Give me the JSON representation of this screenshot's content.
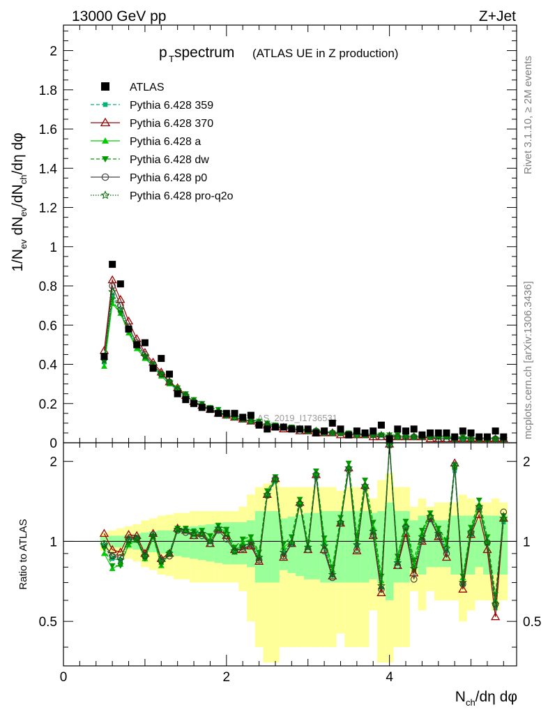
{
  "header": {
    "energy_label": "13000 GeV pp",
    "process_label": "Z+Jet",
    "title_main": "p",
    "title_sub": "T",
    "title_rest": " spectrum",
    "title_paren": "(ATLAS UE in Z production)",
    "rivet_label": "Rivet 3.1.10, ≥ 2M events",
    "source_label": "mcplots.cern.ch [arXiv:1306.3436]",
    "watermark": "ATLAS_2019_I1736531"
  },
  "axes": {
    "ylabel_top": "1/N_ev dN_ev/dN_ch/dη dφ",
    "ylabel_bottom": "Ratio to ATLAS",
    "xlabel": "N_ch/dη dφ",
    "top_ticks": [
      "0",
      "0.2",
      "0.4",
      "0.6",
      "0.8",
      "1",
      "1.2",
      "1.4",
      "1.6",
      "1.8",
      "2"
    ],
    "bottom_ticks": [
      "0.5",
      "1",
      "2"
    ],
    "x_ticks": [
      "0",
      "2",
      "4"
    ]
  },
  "chart_data": [
    {
      "type": "scatter",
      "panel": "main",
      "xlabel": "N_ch/dη dφ",
      "ylabel": "1/N_ev dN_ev/dN_ch/dη dφ",
      "xlim": [
        0,
        5.56
      ],
      "ylim": [
        0,
        2.13
      ],
      "legend_position": "top-left",
      "x": [
        0.5,
        0.6,
        0.7,
        0.8,
        0.9,
        1.0,
        1.1,
        1.2,
        1.3,
        1.4,
        1.5,
        1.6,
        1.7,
        1.8,
        1.9,
        2.0,
        2.1,
        2.2,
        2.3,
        2.4,
        2.5,
        2.6,
        2.7,
        2.8,
        2.9,
        3.0,
        3.1,
        3.2,
        3.3,
        3.4,
        3.5,
        3.6,
        3.7,
        3.8,
        3.9,
        4.0,
        4.1,
        4.2,
        4.3,
        4.4,
        4.5,
        4.6,
        4.7,
        4.8,
        4.9,
        5.0,
        5.1,
        5.2,
        5.3,
        5.4
      ],
      "series": [
        {
          "name": "ATLAS",
          "color": "#000000",
          "marker": "square",
          "values": [
            0.44,
            0.91,
            0.81,
            0.58,
            0.5,
            0.51,
            0.38,
            0.43,
            0.35,
            0.25,
            0.22,
            0.2,
            0.18,
            0.17,
            0.15,
            0.15,
            0.15,
            0.13,
            0.14,
            0.09,
            0.07,
            0.08,
            0.08,
            0.07,
            0.07,
            0.07,
            0.05,
            0.06,
            0.1,
            0.07,
            0.04,
            0.06,
            0.05,
            0.06,
            0.09,
            0.02,
            0.07,
            0.06,
            0.07,
            0.04,
            0.05,
            0.05,
            0.05,
            0.03,
            0.06,
            0.05,
            0.03,
            0.03,
            0.06,
            0.03
          ]
        },
        {
          "name": "Pythia 6.428 359",
          "color": "#00b377",
          "marker": "small-square",
          "dash": "dashed",
          "values": [
            0.41,
            0.75,
            0.67,
            0.57,
            0.49,
            0.44,
            0.39,
            0.34,
            0.3,
            0.27,
            0.24,
            0.21,
            0.19,
            0.17,
            0.16,
            0.14,
            0.13,
            0.12,
            0.11,
            0.1,
            0.09,
            0.08,
            0.08,
            0.07,
            0.07,
            0.06,
            0.06,
            0.05,
            0.05,
            0.05,
            0.04,
            0.04,
            0.04,
            0.04,
            0.04,
            0.03,
            0.03,
            0.03,
            0.03,
            0.03,
            0.03,
            0.03,
            0.03,
            0.02,
            0.02,
            0.02,
            0.02,
            0.02,
            0.02,
            0.02
          ]
        },
        {
          "name": "Pythia 6.428 370",
          "color": "#990000",
          "marker": "open-triangle",
          "dash": "solid",
          "values": [
            0.47,
            0.83,
            0.73,
            0.62,
            0.53,
            0.46,
            0.41,
            0.36,
            0.31,
            0.28,
            0.24,
            0.21,
            0.19,
            0.17,
            0.15,
            0.14,
            0.13,
            0.12,
            0.11,
            0.1,
            0.09,
            0.08,
            0.07,
            0.07,
            0.06,
            0.06,
            0.05,
            0.05,
            0.05,
            0.04,
            0.04,
            0.04,
            0.04,
            0.03,
            0.03,
            0.03,
            0.03,
            0.03,
            0.03,
            0.03,
            0.02,
            0.02,
            0.02,
            0.02,
            0.02,
            0.02,
            0.02,
            0.02,
            0.02,
            0.02
          ]
        },
        {
          "name": "Pythia 6.428 a",
          "color": "#00cc00",
          "marker": "triangle",
          "dash": "solid",
          "values": [
            0.39,
            0.71,
            0.66,
            0.56,
            0.48,
            0.43,
            0.39,
            0.34,
            0.3,
            0.27,
            0.24,
            0.21,
            0.19,
            0.17,
            0.16,
            0.14,
            0.13,
            0.12,
            0.11,
            0.1,
            0.09,
            0.09,
            0.08,
            0.07,
            0.07,
            0.06,
            0.06,
            0.06,
            0.05,
            0.05,
            0.05,
            0.04,
            0.04,
            0.04,
            0.04,
            0.04,
            0.03,
            0.03,
            0.03,
            0.03,
            0.03,
            0.03,
            0.03,
            0.03,
            0.03,
            0.02,
            0.02,
            0.02,
            0.02,
            0.02
          ]
        },
        {
          "name": "Pythia 6.428 dw",
          "color": "#009900",
          "marker": "down-triangle",
          "dash": "dashed",
          "values": [
            0.42,
            0.73,
            0.66,
            0.57,
            0.49,
            0.44,
            0.4,
            0.35,
            0.31,
            0.28,
            0.25,
            0.22,
            0.2,
            0.18,
            0.17,
            0.15,
            0.14,
            0.13,
            0.12,
            0.11,
            0.1,
            0.09,
            0.08,
            0.08,
            0.07,
            0.07,
            0.06,
            0.06,
            0.05,
            0.05,
            0.05,
            0.05,
            0.04,
            0.04,
            0.04,
            0.04,
            0.04,
            0.03,
            0.03,
            0.03,
            0.03,
            0.03,
            0.03,
            0.03,
            0.03,
            0.03,
            0.02,
            0.02,
            0.02,
            0.02
          ]
        },
        {
          "name": "Pythia 6.428 p0",
          "color": "#444444",
          "marker": "open-circle",
          "dash": "solid",
          "values": [
            0.43,
            0.8,
            0.7,
            0.59,
            0.51,
            0.45,
            0.4,
            0.35,
            0.31,
            0.27,
            0.24,
            0.21,
            0.19,
            0.17,
            0.15,
            0.14,
            0.13,
            0.12,
            0.11,
            0.1,
            0.09,
            0.08,
            0.08,
            0.07,
            0.06,
            0.06,
            0.06,
            0.05,
            0.05,
            0.05,
            0.04,
            0.04,
            0.04,
            0.04,
            0.03,
            0.03,
            0.03,
            0.03,
            0.03,
            0.03,
            0.03,
            0.02,
            0.02,
            0.02,
            0.02,
            0.02,
            0.02,
            0.02,
            0.02,
            0.02
          ]
        },
        {
          "name": "Pythia 6.428 pro-q2o",
          "color": "#006600",
          "marker": "star",
          "dash": "dotted",
          "values": [
            0.42,
            0.77,
            0.68,
            0.58,
            0.5,
            0.44,
            0.39,
            0.35,
            0.31,
            0.27,
            0.24,
            0.21,
            0.19,
            0.17,
            0.16,
            0.14,
            0.13,
            0.12,
            0.11,
            0.1,
            0.09,
            0.08,
            0.08,
            0.07,
            0.07,
            0.06,
            0.06,
            0.05,
            0.05,
            0.05,
            0.04,
            0.04,
            0.04,
            0.04,
            0.04,
            0.03,
            0.03,
            0.03,
            0.03,
            0.03,
            0.03,
            0.03,
            0.03,
            0.02,
            0.02,
            0.02,
            0.02,
            0.02,
            0.02,
            0.02
          ]
        }
      ]
    },
    {
      "type": "line",
      "panel": "ratio",
      "ylabel": "Ratio to ATLAS",
      "xlim": [
        0,
        5.56
      ],
      "ylim": [
        0.34,
        2.35
      ],
      "log_y": true,
      "x": [
        0.5,
        0.6,
        0.7,
        0.8,
        0.9,
        1.0,
        1.1,
        1.2,
        1.3,
        1.4,
        1.5,
        1.6,
        1.7,
        1.8,
        1.9,
        2.0,
        2.1,
        2.2,
        2.3,
        2.4,
        2.5,
        2.6,
        2.7,
        2.8,
        2.9,
        3.0,
        3.1,
        3.2,
        3.3,
        3.4,
        3.5,
        3.6,
        3.7,
        3.8,
        3.9,
        4.0,
        4.1,
        4.2,
        4.3,
        4.4,
        4.5,
        4.6,
        4.7,
        4.8,
        4.9,
        5.0,
        5.1,
        5.2,
        5.3,
        5.4
      ],
      "band_green_half": [
        0.04,
        0.05,
        0.05,
        0.06,
        0.07,
        0.08,
        0.09,
        0.1,
        0.1,
        0.12,
        0.13,
        0.14,
        0.15,
        0.16,
        0.17,
        0.18,
        0.18,
        0.18,
        0.2,
        0.3,
        0.3,
        0.3,
        0.22,
        0.24,
        0.26,
        0.28,
        0.28,
        0.3,
        0.3,
        0.3,
        0.3,
        0.3,
        0.3,
        0.28,
        0.3,
        0.4,
        0.3,
        0.3,
        0.2,
        0.25,
        0.2,
        0.2,
        0.2,
        0.25,
        0.25,
        0.25,
        0.2,
        0.25,
        0.25,
        0.25
      ],
      "band_yellow_half": [
        0.08,
        0.1,
        0.12,
        0.14,
        0.16,
        0.2,
        0.22,
        0.25,
        0.26,
        0.28,
        0.28,
        0.3,
        0.3,
        0.3,
        0.3,
        0.3,
        0.3,
        0.35,
        0.5,
        0.6,
        0.65,
        0.7,
        0.6,
        0.6,
        0.6,
        0.6,
        0.6,
        0.6,
        0.6,
        0.55,
        0.6,
        0.6,
        0.6,
        0.45,
        0.7,
        0.8,
        0.6,
        0.6,
        0.35,
        0.45,
        0.35,
        0.4,
        0.4,
        0.4,
        0.5,
        0.45,
        0.4,
        0.4,
        0.45,
        0.4
      ],
      "series": [
        {
          "name": "Pythia 6.428 359",
          "color": "#00b377",
          "marker": "small-square",
          "dash": "dashed",
          "values": [
            0.96,
            0.86,
            0.85,
            1.03,
            1.04,
            0.9,
            1.05,
            0.86,
            0.91,
            1.12,
            1.11,
            1.1,
            1.07,
            1.0,
            1.12,
            1.09,
            0.93,
            0.97,
            0.98,
            0.87,
            1.48,
            1.68,
            0.9,
            0.97,
            1.38,
            0.95,
            1.74,
            0.97,
            0.75,
            1.18,
            1.87,
            0.97,
            1.58,
            1.09,
            0.67,
            2.3,
            0.84,
            1.12,
            0.78,
            1.04,
            1.2,
            1.06,
            0.92,
            1.84,
            0.69,
            1.05,
            1.34,
            0.98,
            0.56,
            1.18
          ]
        },
        {
          "name": "Pythia 6.428 370",
          "color": "#990000",
          "marker": "open-triangle",
          "dash": "solid",
          "values": [
            1.07,
            0.93,
            0.91,
            1.06,
            1.05,
            0.9,
            1.07,
            0.86,
            0.9,
            1.12,
            1.1,
            1.05,
            1.07,
            0.98,
            1.11,
            1.05,
            0.93,
            0.93,
            0.96,
            0.84,
            1.5,
            1.72,
            0.87,
            0.98,
            1.4,
            0.93,
            1.78,
            0.93,
            0.74,
            1.17,
            1.89,
            0.92,
            1.62,
            1.05,
            0.64,
            2.32,
            0.81,
            1.07,
            0.76,
            1.0,
            1.22,
            1.04,
            0.87,
            1.97,
            0.66,
            1.06,
            1.26,
            0.93,
            0.52,
            1.22
          ]
        },
        {
          "name": "Pythia 6.428 a",
          "color": "#00cc00",
          "marker": "triangle",
          "dash": "solid",
          "values": [
            0.9,
            0.79,
            0.82,
            0.97,
            1.01,
            0.86,
            1.04,
            0.81,
            0.9,
            1.1,
            1.1,
            1.06,
            1.07,
            1.01,
            1.12,
            1.09,
            0.91,
            0.99,
            1.02,
            0.89,
            1.51,
            1.73,
            0.95,
            1.0,
            1.4,
            0.96,
            1.81,
            1.01,
            0.78,
            1.2,
            1.92,
            1.02,
            1.63,
            1.13,
            0.71,
            2.35,
            0.87,
            1.17,
            0.81,
            1.07,
            1.27,
            1.1,
            0.97,
            1.92,
            0.73,
            1.11,
            1.38,
            1.0,
            0.6,
            1.22
          ]
        },
        {
          "name": "Pythia 6.428 dw",
          "color": "#009900",
          "marker": "down-triangle",
          "dash": "dashed",
          "values": [
            0.94,
            0.81,
            0.81,
            0.98,
            1.01,
            0.86,
            1.04,
            0.82,
            0.9,
            1.12,
            1.12,
            1.09,
            1.1,
            1.05,
            1.15,
            1.11,
            0.95,
            1.02,
            1.04,
            0.91,
            1.55,
            1.75,
            0.98,
            1.04,
            1.44,
            0.99,
            1.84,
            1.03,
            0.8,
            1.23,
            1.97,
            1.05,
            1.7,
            1.18,
            0.74,
            2.3,
            0.88,
            1.19,
            0.85,
            1.1,
            1.28,
            1.12,
            1.01,
            1.94,
            0.74,
            1.13,
            1.43,
            1.04,
            0.63,
            1.25
          ]
        },
        {
          "name": "Pythia 6.428 p0",
          "color": "#444444",
          "marker": "open-circle",
          "dash": "solid",
          "values": [
            0.98,
            0.88,
            0.87,
            1.02,
            1.02,
            0.88,
            1.06,
            0.85,
            0.88,
            1.1,
            1.08,
            1.05,
            1.05,
            0.98,
            1.1,
            1.02,
            0.92,
            0.94,
            0.97,
            0.85,
            1.49,
            1.72,
            0.88,
            0.98,
            1.38,
            0.93,
            1.78,
            0.92,
            0.73,
            1.17,
            1.86,
            0.93,
            1.6,
            1.06,
            0.66,
            2.3,
            0.81,
            1.13,
            0.72,
            1.01,
            1.23,
            1.05,
            0.9,
            1.94,
            0.69,
            1.08,
            1.34,
            0.99,
            0.58,
            1.29
          ]
        },
        {
          "name": "Pythia 6.428 pro-q2o",
          "color": "#006600",
          "marker": "star",
          "dash": "dotted",
          "values": [
            0.97,
            0.88,
            0.85,
            1.01,
            1.02,
            0.88,
            1.05,
            0.84,
            0.9,
            1.11,
            1.1,
            1.07,
            1.07,
            1.0,
            1.12,
            1.07,
            0.92,
            0.96,
            0.99,
            0.87,
            1.5,
            1.71,
            0.91,
            0.99,
            1.39,
            0.95,
            1.78,
            0.96,
            0.75,
            1.18,
            1.89,
            0.97,
            1.62,
            1.09,
            0.68,
            2.31,
            0.83,
            1.13,
            0.79,
            1.04,
            1.24,
            1.07,
            0.94,
            1.91,
            0.7,
            1.08,
            1.35,
            0.99,
            0.58,
            1.22
          ]
        }
      ]
    }
  ]
}
